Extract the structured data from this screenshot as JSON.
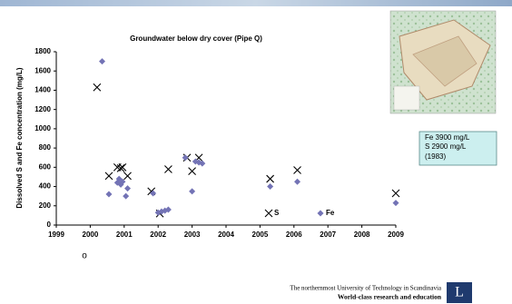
{
  "chart_data": {
    "type": "scatter",
    "title": "Groundwater below dry cover (Pipe Q)",
    "y_label": "Dissolved S and Fe concentration (mg/L)",
    "xlim": [
      1999,
      2009
    ],
    "xticks": [
      1999,
      2000,
      2001,
      2002,
      2003,
      2004,
      2005,
      2006,
      2007,
      2008,
      2009
    ],
    "ylim": [
      0,
      1800
    ],
    "yticks": [
      0,
      200,
      400,
      600,
      800,
      1000,
      1200,
      1400,
      1600,
      1800
    ],
    "grid": false,
    "legend": "bottom",
    "series": [
      {
        "name": "S",
        "marker": "cross",
        "color": "#000000",
        "x": [
          2000.2,
          2000.55,
          2000.8,
          2000.9,
          2000.95,
          2001.1,
          2001.8,
          2002.05,
          2002.3,
          2002.85,
          2003.0,
          2003.2,
          2005.3,
          2006.1,
          2009.0
        ],
        "values": [
          1430,
          510,
          600,
          590,
          600,
          510,
          350,
          120,
          580,
          700,
          560,
          700,
          480,
          570,
          330
        ]
      },
      {
        "name": "Fe",
        "marker": "diamond",
        "color": "#7373b5",
        "x": [
          2000.35,
          2000.55,
          2000.8,
          2000.85,
          2000.9,
          2000.95,
          2001.05,
          2001.1,
          2001.85,
          2002.0,
          2002.1,
          2002.2,
          2002.3,
          2002.8,
          2003.0,
          2003.1,
          2003.2,
          2003.3,
          2005.3,
          2006.1,
          2009.0
        ],
        "values": [
          1700,
          320,
          440,
          480,
          420,
          450,
          300,
          380,
          330,
          130,
          140,
          150,
          160,
          700,
          350,
          660,
          650,
          640,
          400,
          450,
          230
        ]
      }
    ]
  },
  "annotation_box": {
    "lines": [
      "Fe 3900 mg/L",
      "S 2900 mg/L",
      "(1983)"
    ]
  },
  "slide_bullet": "o",
  "footer": {
    "tagline": "The northernmost University of Technology in Scandinavia",
    "motto": "World-class research and education",
    "logo": "L"
  }
}
